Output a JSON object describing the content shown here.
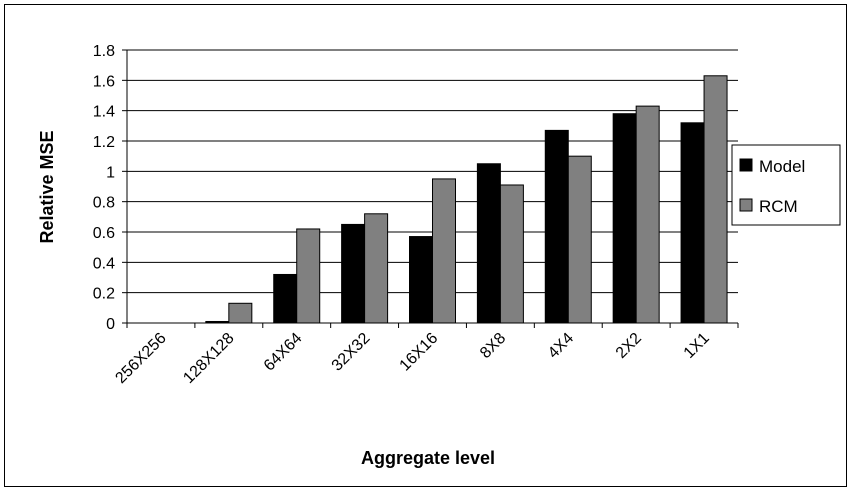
{
  "chart_data": {
    "type": "bar",
    "categories": [
      "256X256",
      "128X128",
      "64X64",
      "32X32",
      "16X16",
      "8X8",
      "4X4",
      "2X2",
      "1X1"
    ],
    "series": [
      {
        "name": "Model",
        "color": "#000000",
        "values": [
          0,
          0.01,
          0.32,
          0.65,
          0.57,
          1.05,
          1.27,
          1.38,
          1.32
        ]
      },
      {
        "name": "RCM",
        "color": "#808080",
        "values": [
          0,
          0.13,
          0.62,
          0.72,
          0.95,
          0.91,
          1.1,
          1.43,
          1.63
        ]
      }
    ],
    "title": "",
    "xlabel": "Aggregate level",
    "ylabel": "Relative MSE",
    "ylim": [
      0,
      1.8
    ],
    "yticks": [
      "0",
      "0.2",
      "0.4",
      "0.6",
      "0.8",
      "1",
      "1.2",
      "1.4",
      "1.6",
      "1.8"
    ],
    "grid": "horizontal",
    "legend": "right"
  }
}
